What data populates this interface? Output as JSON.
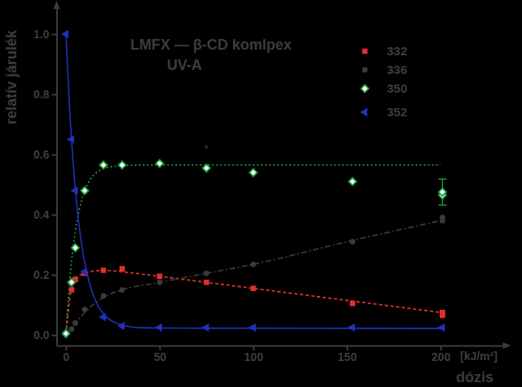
{
  "chart_data": {
    "type": "scatter",
    "title": "LMFX — β-CD komlpex",
    "subtitle": "UV-A",
    "x_label": "dózis",
    "x_unit": "[kJ/m²]",
    "y_label": "relatív járulék",
    "xlim": [
      -5,
      235
    ],
    "ylim": [
      -0.035,
      1.1
    ],
    "xticks": [
      0,
      50,
      100,
      150,
      200
    ],
    "yticks": [
      {
        "value": 0,
        "label": "0.0"
      },
      0.2,
      0.4,
      0.6,
      0.8,
      {
        "value": 1,
        "label": "1.0"
      }
    ],
    "grid": false,
    "legend": "upper right",
    "annotations": [
      {
        "text": "*",
        "x": 75,
        "y": 0.605
      }
    ],
    "series": [
      {
        "name": "332",
        "color": "#e0302a",
        "marker": "square",
        "line_style": "dashed",
        "x": [
          0,
          3,
          5,
          10,
          20,
          30,
          50,
          75,
          100,
          153,
          201,
          201
        ],
        "values": [
          0.005,
          0.15,
          0.185,
          0.205,
          0.215,
          0.22,
          0.195,
          0.175,
          0.155,
          0.105,
          0.065,
          0.075
        ],
        "line": {
          "x": [
            0,
            2,
            4,
            6,
            10,
            20,
            30,
            50,
            75,
            100,
            150,
            200
          ],
          "values": [
            0,
            0.12,
            0.17,
            0.19,
            0.205,
            0.215,
            0.21,
            0.195,
            0.175,
            0.155,
            0.115,
            0.075
          ]
        }
      },
      {
        "name": "336",
        "color": "#3a3a3a",
        "marker": "circle",
        "line_style": "dashdot",
        "x": [
          0,
          3,
          5,
          10,
          20,
          30,
          50,
          75,
          100,
          153,
          201,
          201
        ],
        "values": [
          0,
          0.02,
          0.04,
          0.085,
          0.13,
          0.15,
          0.175,
          0.205,
          0.235,
          0.31,
          0.38,
          0.39
        ],
        "line": {
          "x": [
            0,
            5,
            10,
            20,
            30,
            50,
            75,
            100,
            150,
            200
          ],
          "values": [
            0,
            0.04,
            0.075,
            0.125,
            0.15,
            0.175,
            0.205,
            0.235,
            0.31,
            0.38
          ]
        }
      },
      {
        "name": "350",
        "color": "#1a9a3a",
        "marker": "diamond",
        "line_style": "dotted",
        "x": [
          0,
          3,
          5,
          10,
          20,
          30,
          50,
          75,
          100,
          153,
          201,
          201
        ],
        "values": [
          0.005,
          0.175,
          0.29,
          0.48,
          0.565,
          0.565,
          0.57,
          0.555,
          0.54,
          0.51,
          0.465,
          0.475
        ],
        "errors": [
          null,
          null,
          null,
          null,
          null,
          null,
          null,
          null,
          null,
          null,
          null,
          0.043
        ],
        "line": {
          "x": [
            0,
            2,
            4,
            6,
            8,
            10,
            13,
            16,
            20,
            25,
            30,
            40,
            200
          ],
          "values": [
            0,
            0.179,
            0.3,
            0.383,
            0.44,
            0.479,
            0.518,
            0.538,
            0.553,
            0.56,
            0.563,
            0.565,
            0.565
          ]
        }
      },
      {
        "name": "352",
        "color": "#2030c0",
        "marker": "triangle-left",
        "line_style": "solid",
        "x": [
          0,
          3,
          5,
          10,
          20,
          30,
          50,
          75,
          100,
          153,
          201
        ],
        "values": [
          1,
          0.65,
          0.48,
          0.21,
          0.06,
          0.03,
          0.025,
          0.025,
          0.025,
          0.025,
          0.025
        ],
        "line": {
          "x": [
            0,
            2,
            4,
            6,
            8,
            10,
            13,
            16,
            20,
            25,
            30,
            40,
            50,
            200
          ],
          "values": [
            1,
            0.746,
            0.559,
            0.419,
            0.317,
            0.24,
            0.163,
            0.111,
            0.07,
            0.045,
            0.033,
            0.024,
            0.023,
            0.022
          ]
        }
      }
    ]
  }
}
